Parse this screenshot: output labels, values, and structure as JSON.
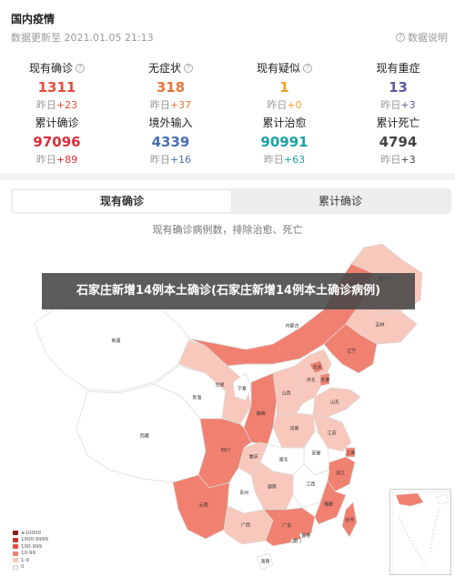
{
  "page": {
    "title": "国内疫情",
    "update_time": "数据更新至 2021.01.05 21:13",
    "data_desc": "数据说明"
  },
  "stats": [
    {
      "label": "现有确诊",
      "help": true,
      "value": "1311",
      "delta_prefix": "昨日",
      "delta": "+23",
      "color": "#e74c3c"
    },
    {
      "label": "无症状",
      "help": true,
      "value": "318",
      "delta_prefix": "昨日",
      "delta": "+37",
      "color": "#e8743b"
    },
    {
      "label": "现有疑似",
      "help": true,
      "value": "1",
      "delta_prefix": "昨日",
      "delta": "+0",
      "color": "#f0a020"
    },
    {
      "label": "现有重症",
      "help": false,
      "value": "13",
      "delta_prefix": "昨日",
      "delta": "+3",
      "color": "#5c5ca0"
    },
    {
      "label": "累计确诊",
      "help": false,
      "value": "97096",
      "delta_prefix": "昨日",
      "delta": "+89",
      "color": "#d8303a"
    },
    {
      "label": "境外输入",
      "help": false,
      "value": "4339",
      "delta_prefix": "昨日",
      "delta": "+16",
      "color": "#4a6fb0"
    },
    {
      "label": "累计治愈",
      "help": false,
      "value": "90991",
      "delta_prefix": "昨日",
      "delta": "+63",
      "color": "#1aa3a3"
    },
    {
      "label": "累计死亡",
      "help": false,
      "value": "4794",
      "delta_prefix": "昨日",
      "delta": "+3",
      "color": "#444444"
    }
  ],
  "tabs": [
    {
      "label": "现有确诊",
      "active": true
    },
    {
      "label": "累计确诊",
      "active": false
    }
  ],
  "map": {
    "subtitle": "现有确诊病例数，排除治愈、死亡",
    "banner": "石家庄新增14例本土确诊(石家庄新增14例本土确诊病例)",
    "legend": [
      {
        "label": "≥10000",
        "color": "#8b1a1a"
      },
      {
        "label": "1000-9999",
        "color": "#c0392b"
      },
      {
        "label": "100-999",
        "color": "#e74c3c"
      },
      {
        "label": "10-99",
        "color": "#f08070"
      },
      {
        "label": "1-9",
        "color": "#f9c8bc"
      },
      {
        "label": "0",
        "color": "#ffffff"
      }
    ],
    "provinces": [
      {
        "name": "新疆",
        "level": "0"
      },
      {
        "name": "西藏",
        "level": "0"
      },
      {
        "name": "青海",
        "level": "0"
      },
      {
        "name": "甘肃",
        "level": "1-9"
      },
      {
        "name": "四川",
        "level": "10-99"
      },
      {
        "name": "云南",
        "level": "10-99"
      },
      {
        "name": "内蒙古",
        "level": "10-99"
      },
      {
        "name": "黑龙江",
        "level": "1-9"
      },
      {
        "name": "吉林",
        "level": "1-9"
      },
      {
        "name": "辽宁",
        "level": "10-99"
      },
      {
        "name": "北京",
        "level": "10-99"
      },
      {
        "name": "天津",
        "level": "10-99"
      },
      {
        "name": "河北",
        "level": "1-9"
      },
      {
        "name": "山西",
        "level": "1-9"
      },
      {
        "name": "山东",
        "level": "1-9"
      },
      {
        "name": "宁夏",
        "level": "0"
      },
      {
        "name": "陕西",
        "level": "10-99"
      },
      {
        "name": "河南",
        "level": "1-9"
      },
      {
        "name": "江苏",
        "level": "1-9"
      },
      {
        "name": "安徽",
        "level": "0"
      },
      {
        "name": "上海",
        "level": "10-99"
      },
      {
        "name": "湖北",
        "level": "0"
      },
      {
        "name": "重庆",
        "level": "1-9"
      },
      {
        "name": "浙江",
        "level": "10-99"
      },
      {
        "name": "湖南",
        "level": "1-9"
      },
      {
        "name": "江西",
        "level": "0"
      },
      {
        "name": "贵州",
        "level": "0"
      },
      {
        "name": "福建",
        "level": "10-99"
      },
      {
        "name": "广西",
        "level": "1-9"
      },
      {
        "name": "广东",
        "level": "10-99"
      },
      {
        "name": "台湾",
        "level": "10-99"
      },
      {
        "name": "香港",
        "level": "0"
      },
      {
        "name": "澳门",
        "level": "0"
      },
      {
        "name": "海南",
        "level": "0"
      }
    ]
  }
}
